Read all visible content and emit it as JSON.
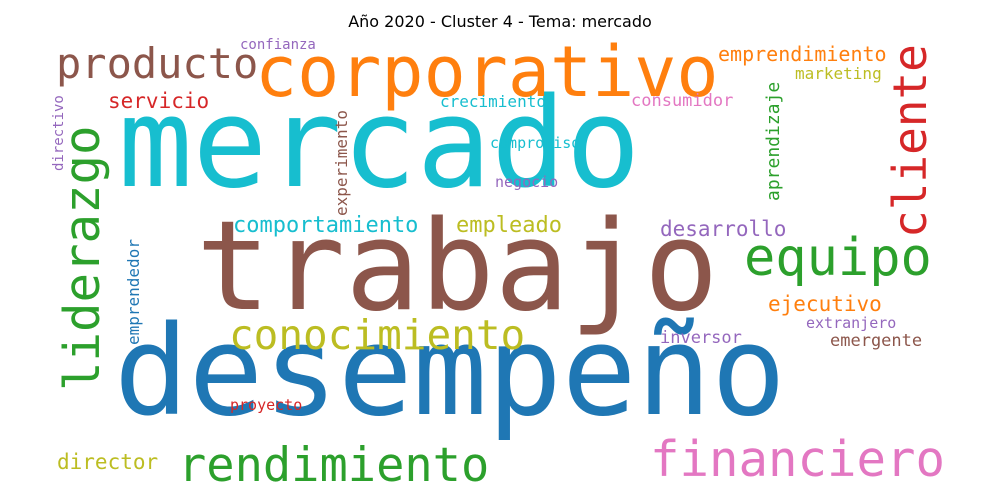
{
  "title": "Año 2020 - Cluster 4 - Tema: mercado",
  "colors": {
    "cyan": "#17becf",
    "brown": "#8c564b",
    "blue": "#1f77b4",
    "orange": "#ff7f0e",
    "green": "#2ca02c",
    "red": "#d62728",
    "pink": "#e377c2",
    "olive": "#bcbd22",
    "purple": "#9467bd"
  },
  "words": {
    "mercado": "mercado",
    "trabajo": "trabajo",
    "desempeno": "desempeño",
    "corporativo": "corporativo",
    "liderazgo": "liderazgo",
    "producto": "producto",
    "cliente": "cliente",
    "equipo": "equipo",
    "conocimiento": "conocimiento",
    "rendimiento": "rendimiento",
    "financiero": "financiero",
    "emprendimiento": "emprendimiento",
    "marketing": "marketing",
    "servicio": "servicio",
    "crecimiento": "crecimiento",
    "consumidor": "consumidor",
    "aprendizaje": "aprendizaje",
    "experimento": "experimento",
    "directivo": "directivo",
    "confianza": "confianza",
    "compromiso": "compromiso",
    "negocio": "negocio",
    "comportamiento": "comportamiento",
    "empleado": "empleado",
    "desarrollo": "desarrollo",
    "emprendedor": "emprendedor",
    "ejecutivo": "ejecutivo",
    "extranjero": "extranjero",
    "inversor": "inversor",
    "emergente": "emergente",
    "proyecto": "proyecto",
    "director": "director"
  }
}
